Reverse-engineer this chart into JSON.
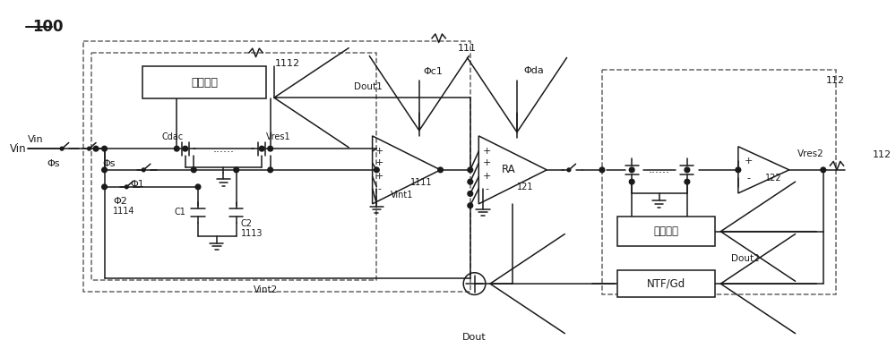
{
  "bg": "#ffffff",
  "lc": "#1a1a1a",
  "label_100": "100",
  "label_111": "111",
  "label_112": "112",
  "label_1112": "1112",
  "label_1111": "1111",
  "label_1113": "1113",
  "label_1114": "1114",
  "label_121": "121",
  "label_122": "122",
  "label_Vin": "Vin",
  "label_Phis": "Φs",
  "label_Phi1": "Φ1",
  "label_Phi2": "Φ2",
  "label_Phic1": "Φc1",
  "label_Phida": "Φda",
  "label_Cdac": "Cdac",
  "label_Vres1": "Vres1",
  "label_Vres2": "Vres2",
  "label_Vint1": "Vint1",
  "label_Vint2": "Vint2",
  "label_C1": "C1",
  "label_C2": "C2",
  "label_RA": "RA",
  "label_Dout": "Dout",
  "label_Dout1": "Dout1",
  "label_Dout2": "Dout2",
  "label_NTFGd": "NTF/Gd",
  "label_switch": "转换开关"
}
